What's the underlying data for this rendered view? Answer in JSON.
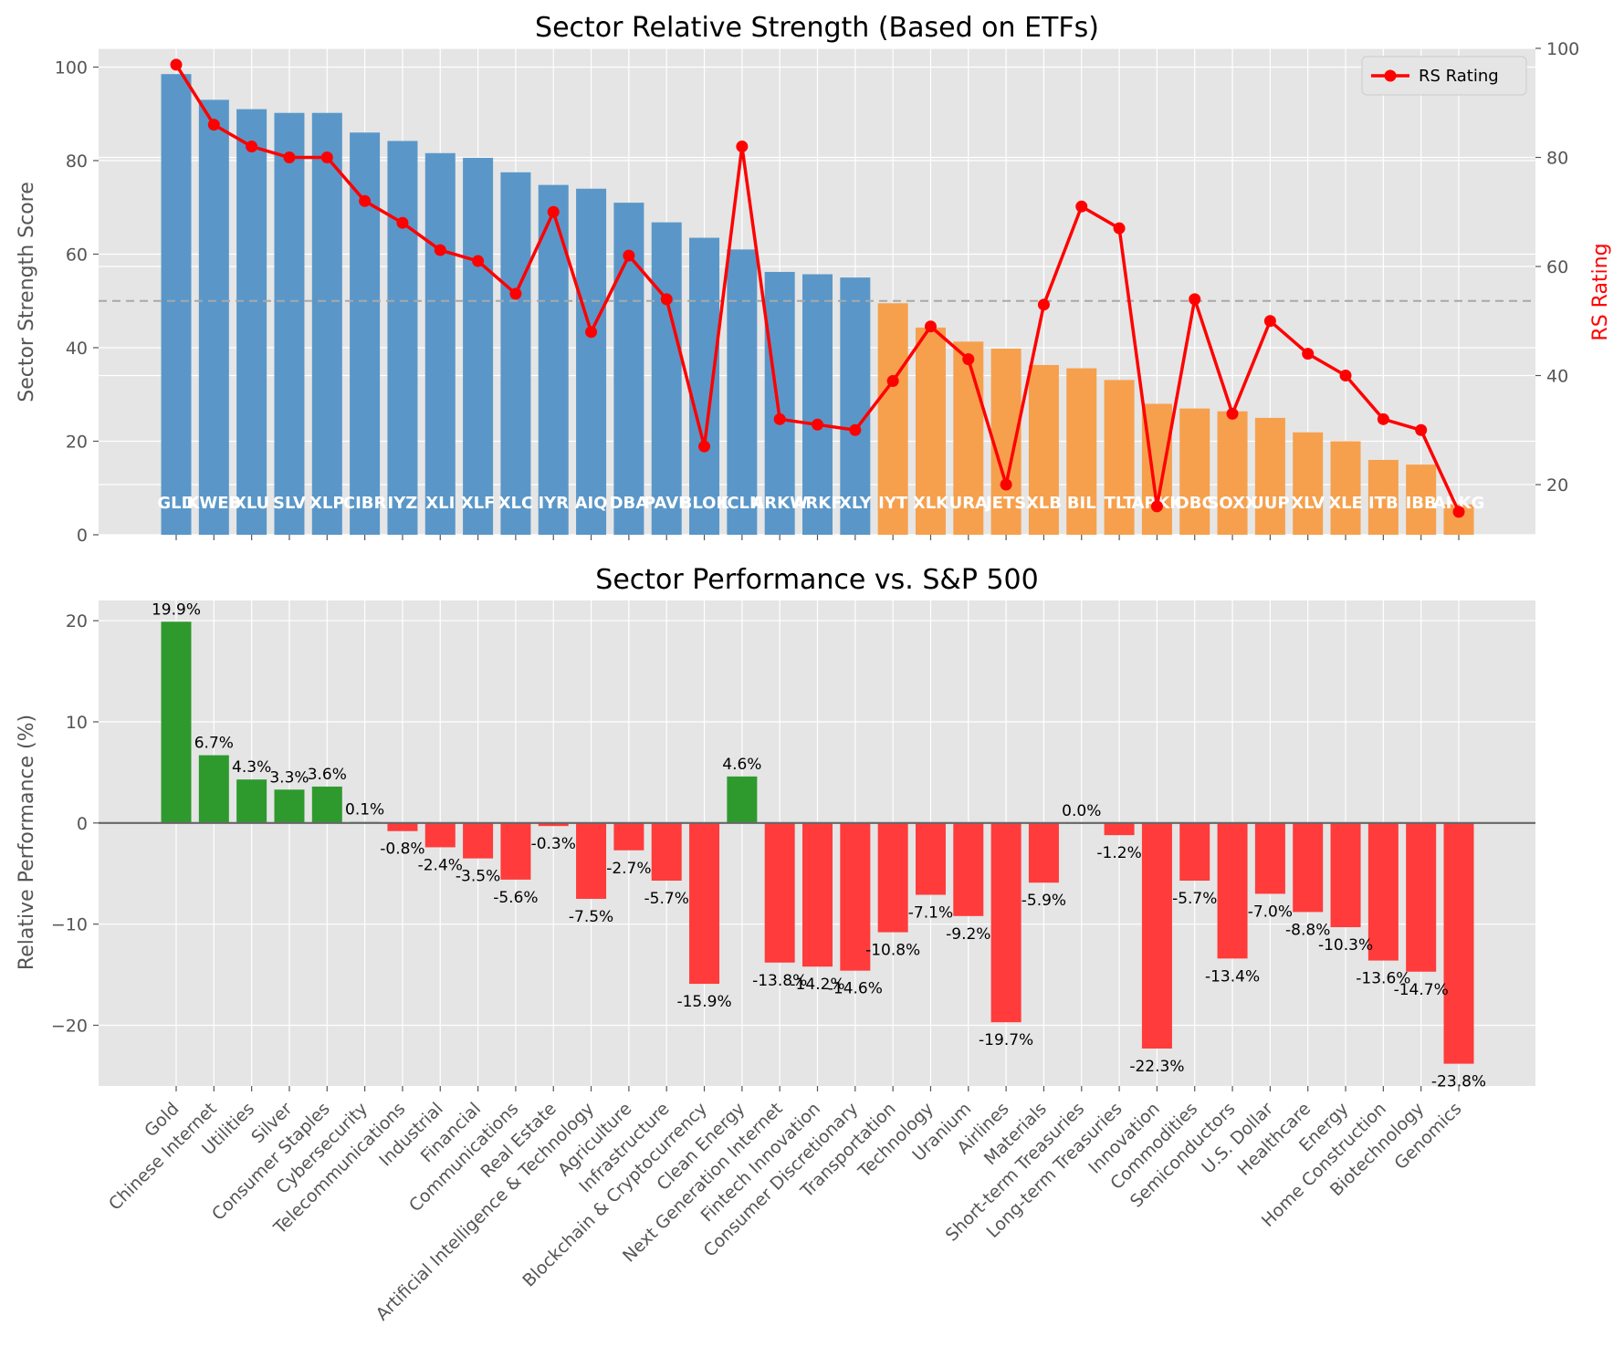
{
  "chart_data": [
    {
      "type": "bar",
      "title": "Sector Relative Strength (Based on ETFs)",
      "ylabel": "Sector Strength Score",
      "y2label": "RS Rating",
      "ylim": [
        0,
        104
      ],
      "y2lim": [
        10.8,
        100
      ],
      "yticks": [
        0,
        20,
        40,
        60,
        80,
        100
      ],
      "y2ticks": [
        20,
        40,
        60,
        80,
        100
      ],
      "threshold": 50,
      "categories": [
        "GLD",
        "KWEB",
        "XLU",
        "SLV",
        "XLP",
        "CIBR",
        "IYZ",
        "XLI",
        "XLF",
        "XLC",
        "IYR",
        "AIQ",
        "DBA",
        "PAVE",
        "BLOK",
        "ICLN",
        "ARKW",
        "ARKF",
        "XLY",
        "IYT",
        "XLK",
        "URA",
        "JETS",
        "XLB",
        "BIL",
        "TLT",
        "ARKK",
        "DBC",
        "SOXX",
        "UUP",
        "XLV",
        "XLE",
        "ITB",
        "IBB",
        "ARKG"
      ],
      "tickers_shown": [
        "GLD",
        "KWEB",
        "XLU",
        "SLV",
        "XLP",
        "CIBR",
        "IYZ",
        "XLI",
        "XLF",
        "XLC",
        "IYR",
        "AIQ",
        "DBA",
        "PAVE",
        "BLOK",
        "ICLN",
        "ARKW",
        "ARKF",
        "XLY",
        "IYT",
        "XLK",
        "URA",
        "JETS",
        "XLB",
        "BIL",
        "TLT",
        "ARKK",
        "DBC",
        "SOXX",
        "UUP",
        "XLV",
        "XLE",
        "ITB",
        "IBB",
        "ARKG"
      ],
      "values": [
        98.5,
        93,
        91,
        90.2,
        90.2,
        86,
        84.2,
        81.6,
        80.6,
        77.5,
        74.8,
        74,
        71,
        66.8,
        63.5,
        61,
        56.2,
        55.7,
        55,
        49.5,
        44.3,
        41.3,
        39.8,
        36.3,
        35.6,
        33.1,
        28,
        27,
        26.4,
        25,
        21.9,
        20,
        16,
        15,
        6.5
      ],
      "colors": {
        "strong": "#5a97c8",
        "weak": "#f6a04d"
      },
      "series": [
        {
          "name": "RS Rating",
          "color": "#ff0000",
          "values": [
            97,
            86,
            82,
            80,
            80,
            72,
            68,
            63,
            61,
            55,
            70,
            48,
            62,
            54,
            27,
            82,
            32,
            31,
            30,
            39,
            49,
            43,
            20,
            53,
            71,
            67,
            16,
            54,
            33,
            50,
            44,
            40,
            32,
            30,
            15
          ]
        }
      ],
      "legend": "top-right",
      "grid": true
    },
    {
      "type": "bar",
      "title": "Sector Performance vs. S&P 500",
      "ylabel": "Relative Performance (%)",
      "ylim": [
        -26,
        22
      ],
      "yticks": [
        -20,
        -10,
        0,
        10,
        20
      ],
      "categories": [
        "Gold",
        "Chinese Internet",
        "Utilities",
        "Silver",
        "Consumer Staples",
        "Cybersecurity",
        "Telecommunications",
        "Industrial",
        "Financial",
        "Communications",
        "Real Estate",
        "Artificial Intelligence & Technology",
        "Agriculture",
        "Infrastructure",
        "Blockchain & Cryptocurrency",
        "Clean Energy",
        "Next Generation Internet",
        "Fintech Innovation",
        "Consumer Discretionary",
        "Transportation",
        "Technology",
        "Uranium",
        "Airlines",
        "Materials",
        "Short-term Treasuries",
        "Long-term Treasuries",
        "Innovation",
        "Commodities",
        "Semiconductors",
        "U.S. Dollar",
        "Healthcare",
        "Energy",
        "Home Construction",
        "Biotechnology",
        "Genomics"
      ],
      "values": [
        19.9,
        6.7,
        4.3,
        3.3,
        3.6,
        0.1,
        -0.8,
        -2.4,
        -3.5,
        -5.6,
        -0.3,
        -7.5,
        -2.7,
        -5.7,
        -15.9,
        4.6,
        -13.8,
        -14.2,
        -14.6,
        -10.8,
        -7.1,
        -9.2,
        -19.7,
        -5.9,
        0.0,
        -1.2,
        -22.3,
        -5.7,
        -13.4,
        -7.0,
        -8.8,
        -10.3,
        -13.6,
        -14.7,
        -23.8
      ],
      "value_labels": [
        "19.9%",
        "6.7%",
        "4.3%",
        "3.3%",
        "3.6%",
        "0.1%",
        "-0.8%",
        "-2.4%",
        "-3.5%",
        "-5.6%",
        "-0.3%",
        "-7.5%",
        "-2.7%",
        "-5.7%",
        "-15.9%",
        "4.6%",
        "-13.8%",
        "-14.2%",
        "-14.6%",
        "-10.8%",
        "-7.1%",
        "-9.2%",
        "-19.7%",
        "-5.9%",
        "0.0%",
        "-1.2%",
        "-22.3%",
        "-5.7%",
        "-13.4%",
        "-7.0%",
        "-8.8%",
        "-10.3%",
        "-13.6%",
        "-14.7%",
        "-23.8%"
      ],
      "colors": {
        "positive": "#2e9a2e",
        "negative": "#ff3b3b"
      },
      "grid": true
    }
  ]
}
